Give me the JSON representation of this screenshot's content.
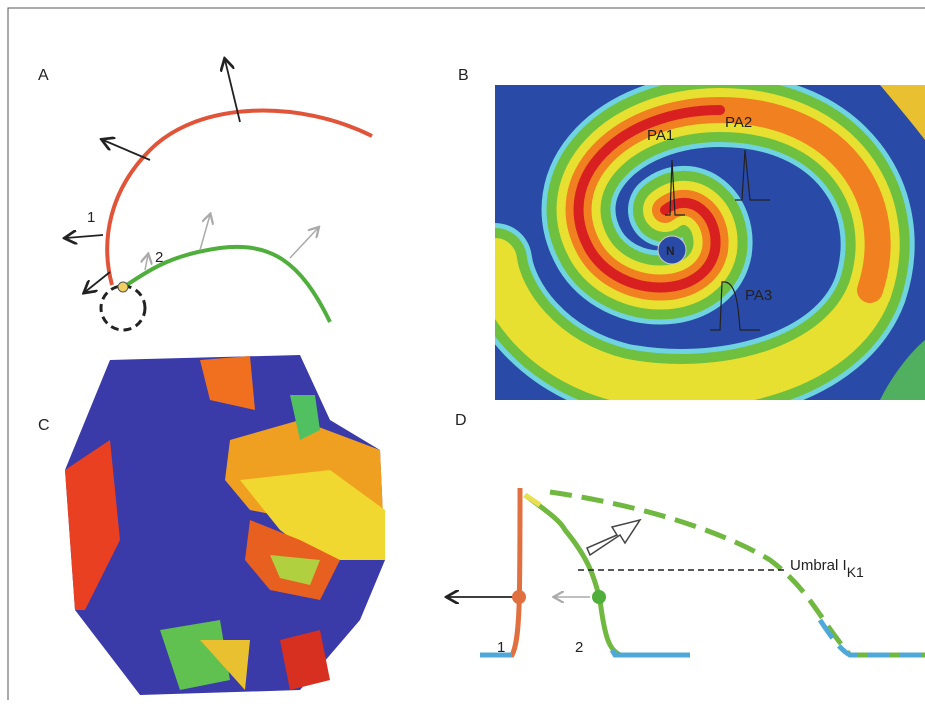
{
  "panels": [
    {
      "label": "A",
      "annotations": [
        "1",
        "2"
      ]
    },
    {
      "label": "B",
      "annotations": [
        "PA1",
        "PA2",
        "PA3",
        "N"
      ]
    },
    {
      "label": "C"
    },
    {
      "label": "D",
      "annotations": [
        "1",
        "2"
      ],
      "threshold": {
        "label": "Umbral I",
        "subscript": "K1"
      }
    }
  ]
}
